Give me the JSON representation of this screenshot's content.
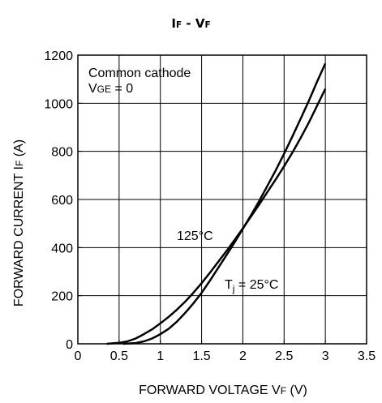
{
  "chart_data": {
    "type": "line",
    "title": {
      "main_1": "I",
      "sub_1": "F",
      "sep": " - ",
      "main_2": "V",
      "sub_2": "F"
    },
    "xlabel": {
      "prefix": "FORWARD VOLTAGE  V",
      "sub": "F",
      "suffix": " (V)"
    },
    "ylabel": {
      "prefix": "FORWARD CURRENT  I",
      "sub": "F",
      "suffix": " (A)"
    },
    "xlim": [
      0,
      3.5
    ],
    "ylim": [
      0,
      1200
    ],
    "x_ticks": [
      0,
      0.5,
      1,
      1.5,
      2,
      2.5,
      3,
      3.5
    ],
    "x_tick_labels": [
      "0",
      "0.5",
      "1",
      "1.5",
      "2",
      "2.5",
      "3",
      "3.5"
    ],
    "y_ticks": [
      0,
      200,
      400,
      600,
      800,
      1000,
      1200
    ],
    "y_tick_labels": [
      "0",
      "200",
      "400",
      "600",
      "800",
      "1000",
      "1200"
    ],
    "grid": true,
    "annotations": {
      "condition_line_1": "Common cathode",
      "condition_line_2": {
        "prefix": "V",
        "sub": "GE",
        "suffix": " = 0"
      },
      "label_125": "125°C",
      "label_25": {
        "prefix": "T",
        "sub": "j",
        "suffix": " = 25°C"
      }
    },
    "series": [
      {
        "name": "125°C",
        "color": "#000000",
        "x": [
          0.35,
          0.5,
          0.6,
          0.7,
          0.8,
          0.9,
          1.0,
          1.1,
          1.2,
          1.3,
          1.4,
          1.5,
          1.6,
          1.7,
          1.8,
          1.9,
          2.0,
          2.1,
          2.2,
          2.3,
          2.4,
          2.5,
          2.6,
          2.7,
          2.8,
          2.9,
          3.0
        ],
        "y": [
          0,
          4,
          10,
          22,
          40,
          60,
          85,
          112,
          142,
          175,
          212,
          252,
          295,
          340,
          385,
          432,
          480,
          530,
          580,
          632,
          684,
          738,
          795,
          855,
          920,
          990,
          1060
        ]
      },
      {
        "name": "Tj = 25°C",
        "color": "#000000",
        "x": [
          0.55,
          0.7,
          0.8,
          0.9,
          1.0,
          1.1,
          1.2,
          1.3,
          1.4,
          1.5,
          1.6,
          1.7,
          1.8,
          1.9,
          2.0,
          2.1,
          2.2,
          2.3,
          2.4,
          2.5,
          2.6,
          2.7,
          2.8,
          2.9,
          3.0
        ],
        "y": [
          0,
          3,
          10,
          22,
          40,
          62,
          92,
          128,
          168,
          212,
          262,
          315,
          368,
          422,
          478,
          535,
          595,
          658,
          722,
          790,
          862,
          935,
          1010,
          1090,
          1165
        ]
      }
    ]
  }
}
